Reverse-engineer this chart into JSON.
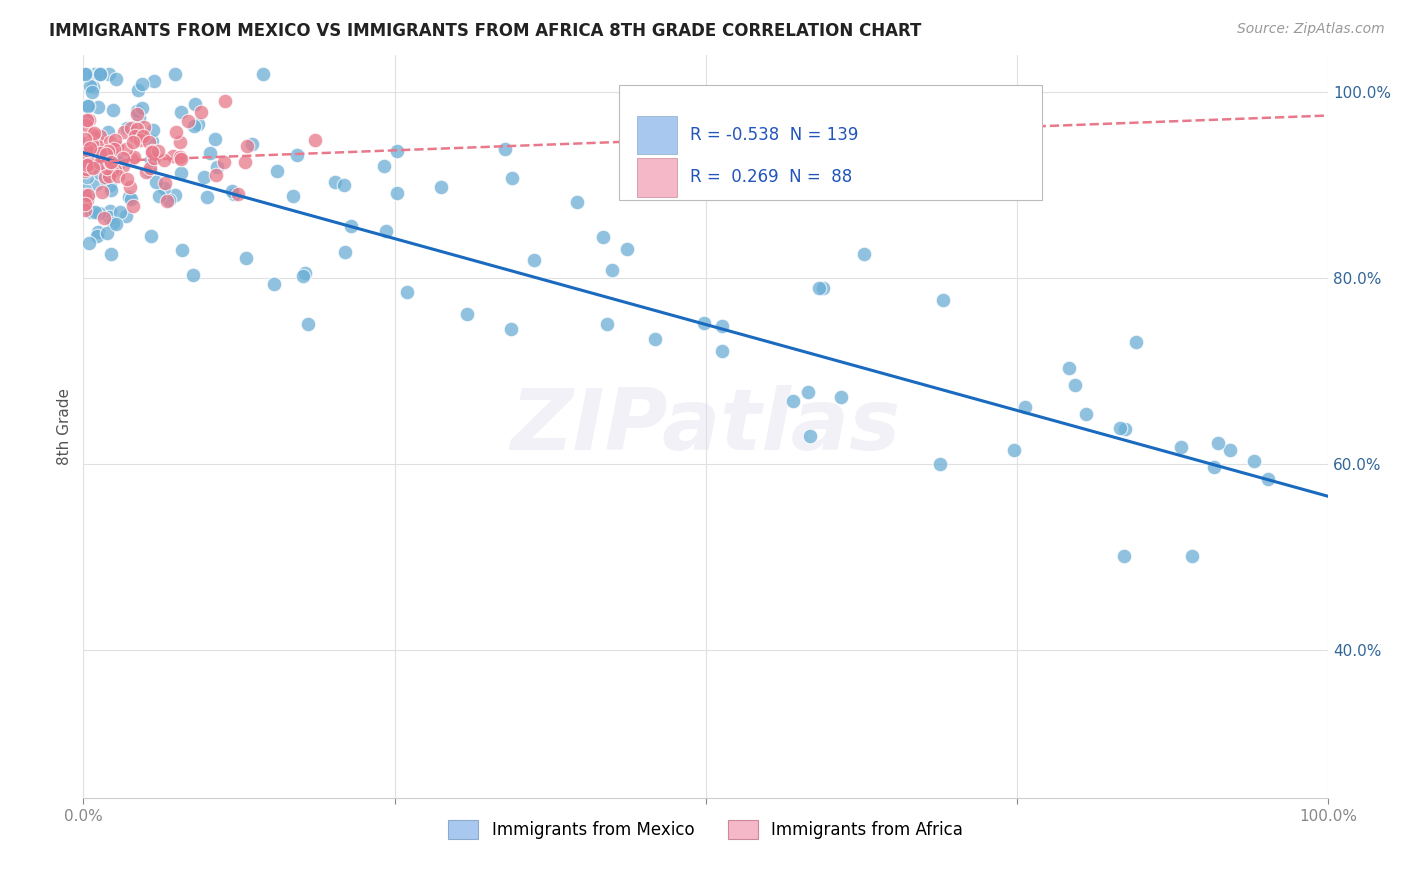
{
  "title": "IMMIGRANTS FROM MEXICO VS IMMIGRANTS FROM AFRICA 8TH GRADE CORRELATION CHART",
  "source": "Source: ZipAtlas.com",
  "ylabel": "8th Grade",
  "legend_labels": [
    "Immigrants from Mexico",
    "Immigrants from Africa"
  ],
  "legend_colors": [
    "#a8c8f0",
    "#f4b8c8"
  ],
  "R_mexico": -0.538,
  "N_mexico": 139,
  "R_africa": 0.269,
  "N_africa": 88,
  "color_mexico": "#6baed6",
  "color_africa": "#e8788a",
  "trendline_mexico_color": "#1a6bbf",
  "trendline_africa_color": "#e8788a",
  "background_color": "#ffffff",
  "watermark_text": "ZIPatlas",
  "watermark_color": "#e0e0ee",
  "watermark_alpha": 0.45,
  "xlim": [
    0.0,
    1.0
  ],
  "ylim": [
    0.24,
    1.04
  ],
  "yticks": [
    0.4,
    0.6,
    0.8,
    1.0
  ],
  "ytick_labels": [
    "40.0%",
    "60.0%",
    "80.0%",
    "100.0%"
  ],
  "xticks": [
    0.0,
    0.25,
    0.5,
    0.75,
    1.0
  ],
  "xtick_labels": [
    "0.0%",
    "",
    "",
    "",
    "100.0%"
  ],
  "mex_trend_x": [
    0.0,
    1.0
  ],
  "mex_trend_y": [
    0.935,
    0.565
  ],
  "afr_trend_x": [
    0.0,
    1.0
  ],
  "afr_trend_y": [
    0.925,
    0.975
  ],
  "title_fontsize": 12,
  "source_fontsize": 10,
  "tick_fontsize": 11,
  "legend_fontsize": 12
}
